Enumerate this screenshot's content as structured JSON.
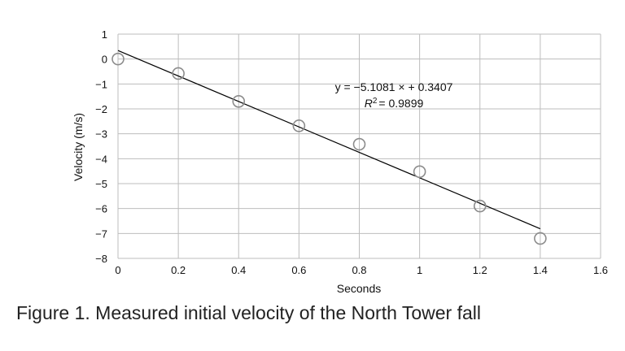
{
  "figure_caption": "Figure 1. Measured initial velocity of the North Tower fall",
  "chart_data": {
    "type": "scatter",
    "xlabel": "Seconds",
    "ylabel": "Velocity (m/s)",
    "xlim": [
      0,
      1.6
    ],
    "ylim": [
      -8,
      1
    ],
    "x_ticks": [
      0,
      0.2,
      0.4,
      0.6,
      0.8,
      1,
      1.2,
      1.4,
      1.6
    ],
    "x_tick_labels": [
      "0",
      "0.2",
      "0.4",
      "0.6",
      "0.8",
      "1",
      "1.2",
      "1.4",
      "1.6"
    ],
    "y_ticks": [
      1,
      0,
      -1,
      -2,
      -3,
      -4,
      -5,
      -6,
      -7,
      -8
    ],
    "y_tick_labels": [
      "1",
      "0",
      "−1",
      "−2",
      "−3",
      "−4",
      "−5",
      "−6",
      "−7",
      "−8"
    ],
    "grid": true,
    "legend": false,
    "series": [
      {
        "marker": "hollow-circle",
        "x": [
          0,
          0.2,
          0.4,
          0.6,
          0.8,
          1.0,
          1.2,
          1.4
        ],
        "y": [
          0.0,
          -0.58,
          -1.7,
          -2.68,
          -3.42,
          -4.52,
          -5.9,
          -7.2
        ]
      }
    ],
    "trendline": {
      "type": "linear",
      "slope": -5.1081,
      "intercept": 0.3407,
      "x_range": [
        0,
        1.4
      ],
      "equation_label": "y = −5.1081 × + 0.3407",
      "r2_label": "= 0.9899"
    },
    "colors": {
      "grid": "#bdbdbd",
      "marker": "#8c8c8c",
      "trendline": "#000000",
      "text": "#111111"
    }
  }
}
